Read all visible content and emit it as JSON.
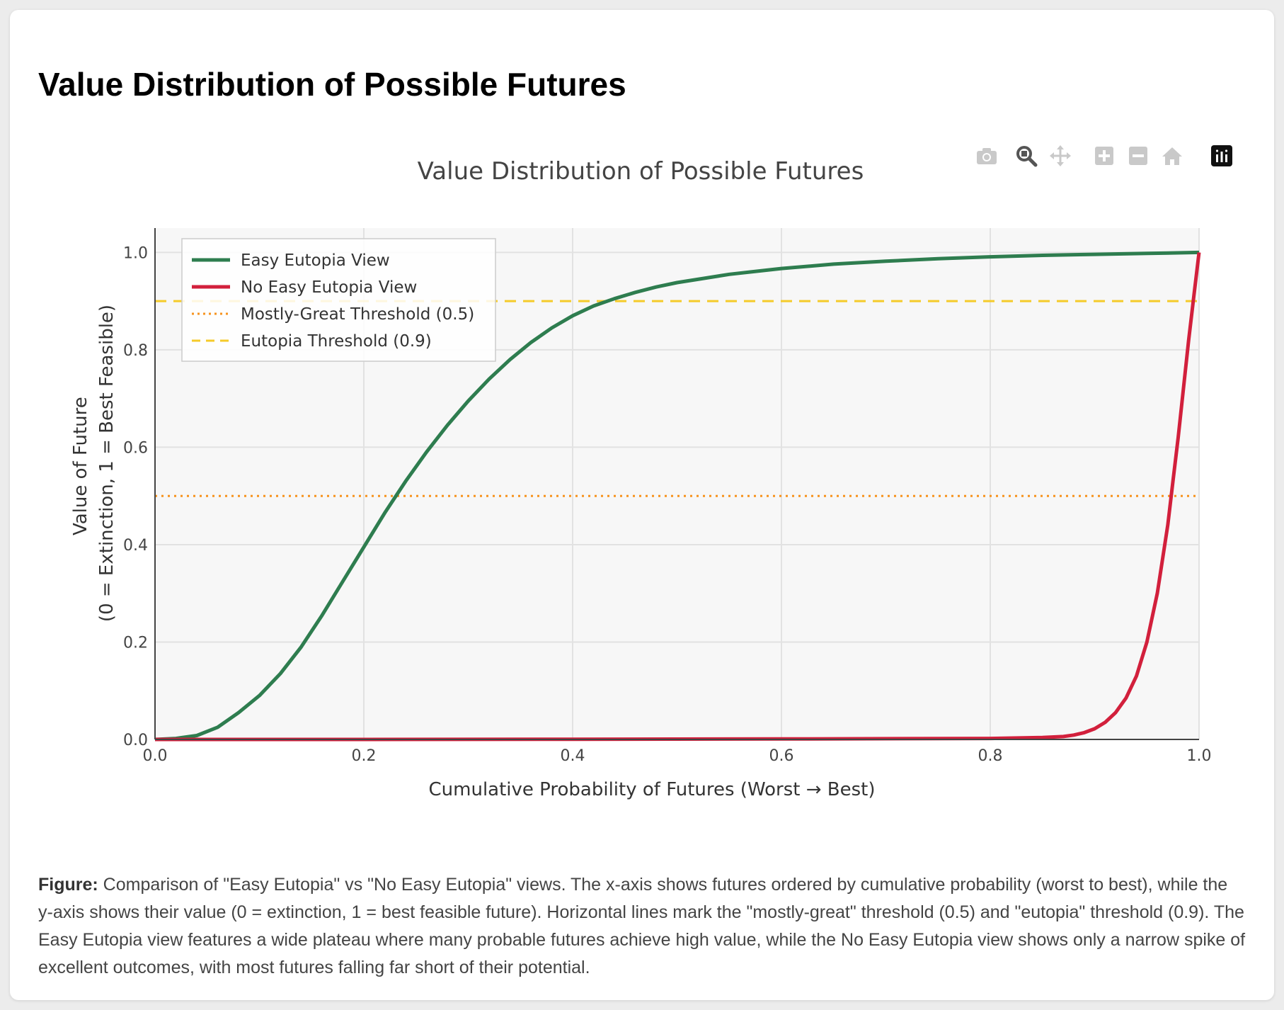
{
  "page": {
    "heading": "Value Distribution of Possible Futures",
    "caption_label": "Figure:",
    "caption_text": "Comparison of \"Easy Eutopia\" vs \"No Easy Eutopia\" views. The x-axis shows futures ordered by cumulative probability (worst to best), while the y-axis shows their value (0 = extinction, 1 = best feasible future). Horizontal lines mark the \"mostly-great\" threshold (0.5) and \"eutopia\" threshold (0.9). The Easy Eutopia view features a wide plateau where many probable futures achieve high value, while the No Easy Eutopia view shows only a narrow spike of excellent outcomes, with most futures falling far short of their potential."
  },
  "modebar": {
    "buttons": [
      {
        "name": "camera-icon"
      },
      {
        "name": "zoom-icon"
      },
      {
        "name": "pan-icon"
      },
      {
        "name": "zoom-in-icon"
      },
      {
        "name": "zoom-out-icon"
      },
      {
        "name": "home-icon"
      },
      {
        "name": "plotly-logo-icon"
      }
    ]
  },
  "chart_data": {
    "type": "line",
    "title": "Value Distribution of Possible Futures",
    "xlabel": "Cumulative Probability of Futures (Worst → Best)",
    "ylabel_line1": "Value of Future",
    "ylabel_line2": "(0 = Extinction, 1 = Best Feasible)",
    "xlim": [
      0,
      1
    ],
    "ylim": [
      0,
      1.05
    ],
    "xticks": [
      0.0,
      0.2,
      0.4,
      0.6,
      0.8,
      1.0
    ],
    "yticks": [
      0.0,
      0.2,
      0.4,
      0.6,
      0.8,
      1.0
    ],
    "xtick_labels": [
      "0.0",
      "0.2",
      "0.4",
      "0.6",
      "0.8",
      "1.0"
    ],
    "ytick_labels": [
      "0.0",
      "0.2",
      "0.4",
      "0.6",
      "0.8",
      "1.0"
    ],
    "grid": true,
    "legend_position": "top-left",
    "plot_background": "#f7f7f7",
    "series": [
      {
        "name": "Easy Eutopia View",
        "color": "#2e7d4f",
        "style": "solid",
        "x": [
          0.0,
          0.02,
          0.04,
          0.06,
          0.08,
          0.1,
          0.12,
          0.14,
          0.16,
          0.18,
          0.2,
          0.22,
          0.24,
          0.26,
          0.28,
          0.3,
          0.32,
          0.34,
          0.36,
          0.38,
          0.4,
          0.42,
          0.44,
          0.46,
          0.48,
          0.5,
          0.55,
          0.6,
          0.65,
          0.7,
          0.75,
          0.8,
          0.85,
          0.9,
          0.95,
          1.0
        ],
        "y": [
          0.0,
          0.002,
          0.008,
          0.025,
          0.055,
          0.09,
          0.135,
          0.19,
          0.255,
          0.325,
          0.395,
          0.465,
          0.53,
          0.59,
          0.645,
          0.695,
          0.74,
          0.78,
          0.815,
          0.845,
          0.87,
          0.89,
          0.905,
          0.918,
          0.929,
          0.938,
          0.955,
          0.967,
          0.976,
          0.982,
          0.987,
          0.991,
          0.994,
          0.996,
          0.998,
          1.0
        ]
      },
      {
        "name": "No Easy Eutopia View",
        "color": "#d2203c",
        "style": "solid",
        "x": [
          0.0,
          0.2,
          0.4,
          0.6,
          0.8,
          0.85,
          0.87,
          0.88,
          0.89,
          0.9,
          0.91,
          0.92,
          0.93,
          0.94,
          0.95,
          0.96,
          0.97,
          0.975,
          0.98,
          0.985,
          0.99,
          0.995,
          1.0
        ],
        "y": [
          0.0,
          0.0,
          0.0005,
          0.001,
          0.002,
          0.004,
          0.006,
          0.009,
          0.014,
          0.022,
          0.035,
          0.055,
          0.085,
          0.13,
          0.2,
          0.3,
          0.44,
          0.53,
          0.62,
          0.72,
          0.82,
          0.91,
          1.0
        ]
      },
      {
        "name": "Mostly-Great Threshold (0.5)",
        "color": "#f7931e",
        "style": "dot",
        "x": [
          0.0,
          1.0
        ],
        "y": [
          0.5,
          0.5
        ]
      },
      {
        "name": "Eutopia Threshold (0.9)",
        "color": "#f5cb2a",
        "style": "dash",
        "x": [
          0.0,
          1.0
        ],
        "y": [
          0.9,
          0.9
        ]
      }
    ]
  }
}
